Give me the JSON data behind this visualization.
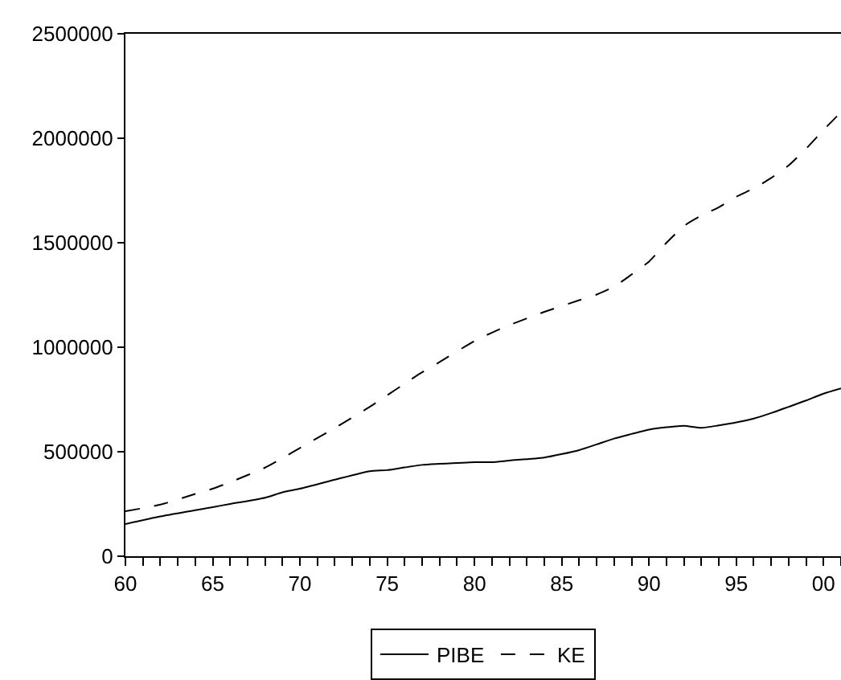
{
  "chart_data": {
    "type": "line",
    "x": [
      1960,
      1962,
      1964,
      1965,
      1966,
      1968,
      1969,
      1970,
      1972,
      1974,
      1975,
      1976,
      1977,
      1978,
      1980,
      1981,
      1982,
      1984,
      1986,
      1987,
      1988,
      1989,
      1990,
      1991,
      1992,
      1993,
      1994,
      1995,
      1996,
      1997,
      1998,
      1999,
      2000,
      2001
    ],
    "series": [
      {
        "name": "PIBE",
        "color": "#000000",
        "line_style": "solid",
        "values": [
          154000,
          190000,
          220000,
          235000,
          250000,
          280000,
          306000,
          323000,
          366000,
          407000,
          412000,
          425000,
          437000,
          442000,
          450000,
          450000,
          458000,
          472000,
          508000,
          535000,
          563000,
          585000,
          606000,
          617000,
          624000,
          614000,
          626000,
          640000,
          659000,
          685000,
          715000,
          745000,
          778000,
          803000
        ]
      },
      {
        "name": "KE",
        "color": "#000000",
        "line_style": "dashed",
        "values": [
          215000,
          247000,
          298000,
          323000,
          354000,
          424000,
          470000,
          518000,
          614000,
          715000,
          770000,
          826000,
          880000,
          929000,
          1030000,
          1070000,
          1106000,
          1169000,
          1225000,
          1252000,
          1290000,
          1348000,
          1410000,
          1500000,
          1580000,
          1630000,
          1670000,
          1720000,
          1760000,
          1810000,
          1870000,
          1950000,
          2040000,
          2125000
        ]
      }
    ],
    "xlim": [
      1960,
      2001
    ],
    "xticks": [
      {
        "value": 1960,
        "label": "60"
      },
      {
        "value": 1961,
        "label": null
      },
      {
        "value": 1962,
        "label": null
      },
      {
        "value": 1963,
        "label": null
      },
      {
        "value": 1964,
        "label": null
      },
      {
        "value": 1965,
        "label": "65"
      },
      {
        "value": 1966,
        "label": null
      },
      {
        "value": 1967,
        "label": null
      },
      {
        "value": 1968,
        "label": null
      },
      {
        "value": 1969,
        "label": null
      },
      {
        "value": 1970,
        "label": "70"
      },
      {
        "value": 1971,
        "label": null
      },
      {
        "value": 1972,
        "label": null
      },
      {
        "value": 1973,
        "label": null
      },
      {
        "value": 1974,
        "label": null
      },
      {
        "value": 1975,
        "label": "75"
      },
      {
        "value": 1976,
        "label": null
      },
      {
        "value": 1977,
        "label": null
      },
      {
        "value": 1978,
        "label": null
      },
      {
        "value": 1979,
        "label": null
      },
      {
        "value": 1980,
        "label": "80"
      },
      {
        "value": 1981,
        "label": null
      },
      {
        "value": 1982,
        "label": null
      },
      {
        "value": 1983,
        "label": null
      },
      {
        "value": 1984,
        "label": null
      },
      {
        "value": 1985,
        "label": "85"
      },
      {
        "value": 1986,
        "label": null
      },
      {
        "value": 1987,
        "label": null
      },
      {
        "value": 1988,
        "label": null
      },
      {
        "value": 1989,
        "label": null
      },
      {
        "value": 1990,
        "label": "90"
      },
      {
        "value": 1991,
        "label": null
      },
      {
        "value": 1992,
        "label": null
      },
      {
        "value": 1993,
        "label": null
      },
      {
        "value": 1994,
        "label": null
      },
      {
        "value": 1995,
        "label": "95"
      },
      {
        "value": 1996,
        "label": null
      },
      {
        "value": 1997,
        "label": null
      },
      {
        "value": 1998,
        "label": null
      },
      {
        "value": 1999,
        "label": null
      },
      {
        "value": 2000,
        "label": "00"
      },
      {
        "value": 2001,
        "label": null
      }
    ],
    "ylim": [
      0,
      2500000
    ],
    "yticks": [
      0,
      500000,
      1000000,
      1500000,
      2000000,
      2500000
    ],
    "grid": false,
    "legend": "bottom"
  }
}
